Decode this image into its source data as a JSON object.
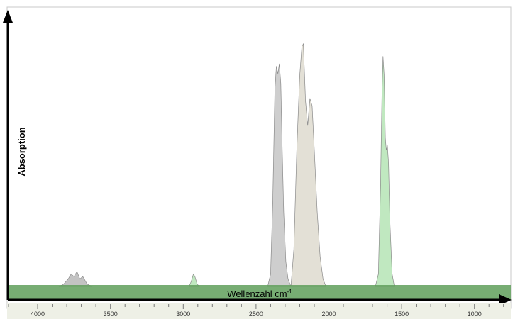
{
  "chart_data": {
    "type": "area",
    "xlabel": "Wellenzahl cm",
    "xlabel_sup": "-1",
    "ylabel": "Absorption",
    "x_reversed": true,
    "xlim": [
      4200,
      750
    ],
    "ylim": [
      0,
      1
    ],
    "x_ticks": [
      4000,
      3500,
      3000,
      2500,
      2000,
      1500,
      1000
    ],
    "x_tick_labels": [
      "4000",
      "3500",
      "3000",
      "2500",
      "2000",
      "1500",
      "1000"
    ],
    "grid": false,
    "legend": "none",
    "series": [
      {
        "color": "#c9c9c9",
        "x": [
          2420,
          2400,
          2385,
          2370,
          2360,
          2350,
          2340,
          2330,
          2320,
          2310,
          2295,
          2280,
          2260
        ],
        "y": [
          0.0,
          0.05,
          0.35,
          0.8,
          0.89,
          0.86,
          0.9,
          0.82,
          0.55,
          0.3,
          0.1,
          0.03,
          0.0
        ]
      },
      {
        "color": "#e0ddd2",
        "x": [
          2260,
          2240,
          2220,
          2200,
          2185,
          2175,
          2160,
          2145,
          2130,
          2115,
          2100,
          2080,
          2060,
          2040,
          2020
        ],
        "y": [
          0.0,
          0.15,
          0.55,
          0.85,
          0.97,
          0.98,
          0.75,
          0.65,
          0.76,
          0.73,
          0.55,
          0.3,
          0.12,
          0.03,
          0.0
        ]
      },
      {
        "color": "#b9e6b9",
        "x": [
          1680,
          1660,
          1645,
          1635,
          1628,
          1620,
          1612,
          1605,
          1598,
          1590,
          1580,
          1565,
          1550
        ],
        "y": [
          0.0,
          0.05,
          0.4,
          0.78,
          0.93,
          0.85,
          0.6,
          0.55,
          0.57,
          0.5,
          0.25,
          0.05,
          0.0
        ]
      },
      {
        "color": "#b9e6b9",
        "x": [
          2960,
          2945,
          2930,
          2920,
          2905,
          2890
        ],
        "y": [
          0.0,
          0.02,
          0.05,
          0.04,
          0.01,
          0.0
        ]
      },
      {
        "color": "#bdbdbd",
        "x": [
          3850,
          3820,
          3790,
          3770,
          3750,
          3730,
          3710,
          3690,
          3660,
          3630
        ],
        "y": [
          0.0,
          0.01,
          0.03,
          0.05,
          0.04,
          0.06,
          0.03,
          0.04,
          0.01,
          0.0
        ]
      }
    ],
    "baseline_color": "#5f9f5a",
    "axis_color": "#000000"
  }
}
